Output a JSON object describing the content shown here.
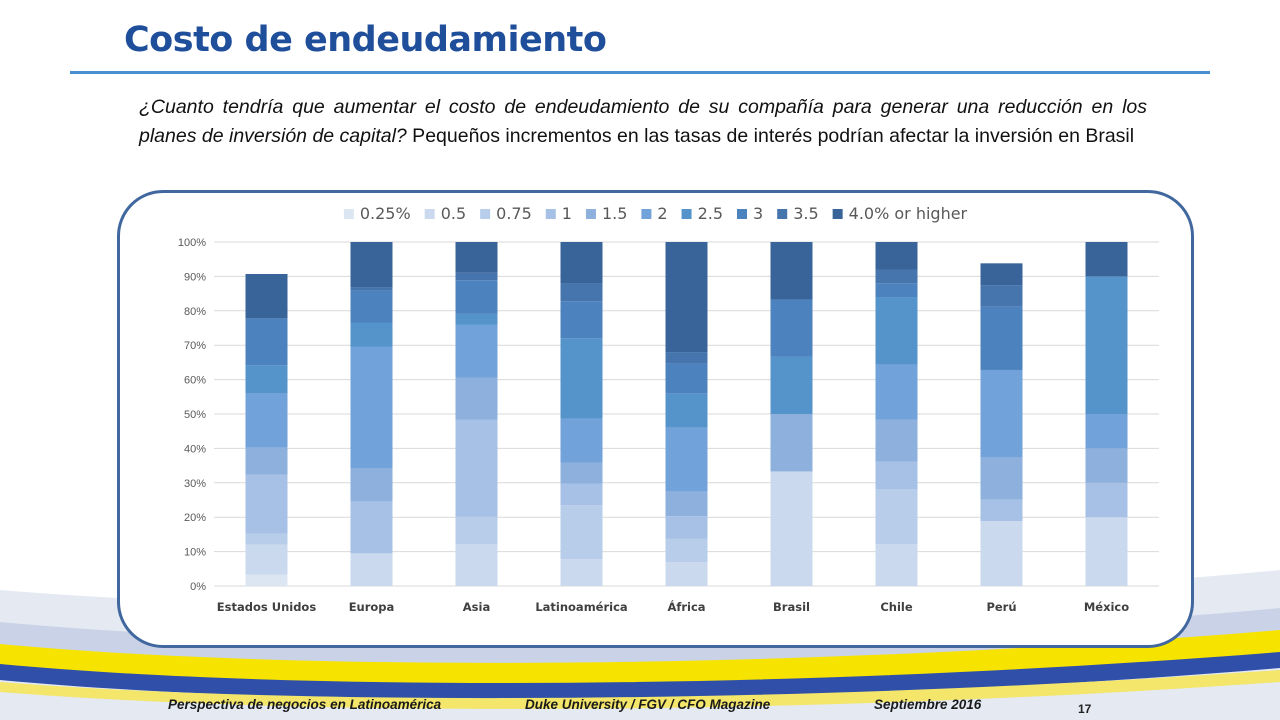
{
  "slide": {
    "title": "Costo de endeudamiento",
    "question_italic": "¿Cuanto tendría que aumentar el costo de endeudamiento de su compañía para generar una reducción en los planes de inversión de capital?",
    "question_rest": " Pequeños incrementos en las tasas de interés podrían afectar la inversión en Brasil",
    "footer": {
      "left": "Perspectiva de negocios en Latinoamérica",
      "center": "Duke University / FGV / CFO Magazine",
      "right": "Septiembre 2016"
    },
    "page_number": "17",
    "colors": {
      "title": "#1f4e9a",
      "frame": "#41689e",
      "band_yellow": "#f6e400",
      "band_blue": "#2f4fa8"
    }
  },
  "chart_data": {
    "type": "bar",
    "stacked": true,
    "title": "",
    "xlabel": "",
    "ylabel": "",
    "ylim": [
      0,
      100
    ],
    "y_ticks": [
      "0%",
      "10%",
      "20%",
      "30%",
      "40%",
      "50%",
      "60%",
      "70%",
      "80%",
      "90%",
      "100%"
    ],
    "grid": true,
    "legend_position": "top",
    "categories": [
      "Estados Unidos",
      "Europa",
      "Asia",
      "Latinoamérica",
      "África",
      "Brasil",
      "Chile",
      "Perú",
      "México"
    ],
    "series": [
      {
        "name": "0.25%",
        "color": "#dce6f2",
        "values": [
          3.3,
          0,
          0,
          0,
          0,
          0,
          0,
          0,
          0
        ]
      },
      {
        "name": "0.5",
        "color": "#cad9ee",
        "values": [
          8.7,
          9.5,
          12.1,
          7.8,
          6.9,
          33.3,
          12.2,
          18.9,
          20
        ]
      },
      {
        "name": "0.75",
        "color": "#b7cdea",
        "values": [
          3.2,
          0,
          8,
          15.7,
          6.8,
          0,
          16,
          0,
          0
        ]
      },
      {
        "name": "1",
        "color": "#a6c0e6",
        "values": [
          17.2,
          15.1,
          28.2,
          6.2,
          6.6,
          0,
          7.9,
          6.2,
          10
        ]
      },
      {
        "name": "1.5",
        "color": "#8eb0dd",
        "values": [
          7.8,
          9.7,
          12.2,
          6.1,
          7.2,
          16.7,
          12.2,
          12.4,
          10
        ]
      },
      {
        "name": "2",
        "color": "#72a2da",
        "values": [
          15.9,
          35.2,
          15.4,
          12.8,
          18.5,
          0,
          16,
          25.3,
          10
        ]
      },
      {
        "name": "2.5",
        "color": "#5593cb",
        "values": [
          8.1,
          7.1,
          3.2,
          23.4,
          9.9,
          16.7,
          19.7,
          0,
          40
        ]
      },
      {
        "name": "3",
        "color": "#4c82bd",
        "values": [
          13.6,
          9.2,
          9.8,
          10.8,
          8.8,
          16.6,
          4,
          18.4,
          0
        ]
      },
      {
        "name": "3.5",
        "color": "#4675ad",
        "values": [
          0,
          1.1,
          2.2,
          5.1,
          3.3,
          0,
          4,
          6.2,
          0
        ]
      },
      {
        "name": "4.0% or higher",
        "color": "#38649a",
        "values": [
          12.9,
          13.1,
          8.9,
          12.1,
          32,
          16.7,
          8,
          6.4,
          10
        ]
      }
    ]
  }
}
